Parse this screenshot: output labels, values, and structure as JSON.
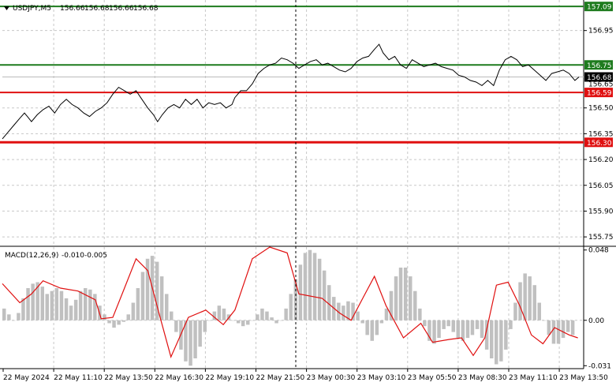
{
  "chart_data": [
    {
      "type": "line",
      "symbol_header": "USDJPY,M5",
      "ohlc": [
        "156.66",
        "156.68",
        "156.66",
        "156.68"
      ],
      "ylim": [
        155.7,
        157.1
      ],
      "y_ticks": [
        {
          "value": 156.95,
          "label": "156.95"
        },
        {
          "value": 156.5,
          "label": "156.50"
        },
        {
          "value": 156.35,
          "label": "156.35"
        },
        {
          "value": 156.2,
          "label": "156.20"
        },
        {
          "value": 156.05,
          "label": "156.05"
        },
        {
          "value": 155.9,
          "label": "155.90"
        },
        {
          "value": 155.75,
          "label": "155.75"
        }
      ],
      "levels": [
        {
          "value": 157.09,
          "label": "157.09",
          "color": "#1e7b1e"
        },
        {
          "value": 156.75,
          "label": "156.75",
          "color": "#1e7b1e"
        },
        {
          "value": 156.59,
          "label": "156.59",
          "color": "#e01010"
        },
        {
          "value": 156.3,
          "label": "156.30",
          "color": "#e01010"
        }
      ],
      "current_price": {
        "value": 156.68,
        "label": "156.68",
        "second_label": "156.65"
      },
      "x_tick_labels": [
        "22 May 2024",
        "22 May 11:10",
        "22 May 13:50",
        "22 May 16:30",
        "22 May 19:10",
        "22 May 21:50",
        "23 May 00:30",
        "23 May 03:10",
        "23 May 05:50",
        "23 May 08:30",
        "23 May 11:10",
        "23 May 13:50"
      ],
      "x_range": [
        0,
        100
      ],
      "series": [
        {
          "values": [
            [
              0.0,
              156.32
            ],
            [
              1.0,
              156.36
            ],
            [
              2.0,
              156.4
            ],
            [
              3.0,
              156.44
            ],
            [
              3.8,
              156.47
            ],
            [
              4.3,
              156.45
            ],
            [
              5.0,
              156.42
            ],
            [
              6.0,
              156.46
            ],
            [
              7.0,
              156.49
            ],
            [
              8.0,
              156.51
            ],
            [
              9.0,
              156.47
            ],
            [
              10.0,
              156.52
            ],
            [
              11.0,
              156.55
            ],
            [
              12.0,
              156.52
            ],
            [
              13.0,
              156.5
            ],
            [
              14.0,
              156.47
            ],
            [
              15.0,
              156.45
            ],
            [
              16.0,
              156.48
            ],
            [
              17.0,
              156.5
            ],
            [
              18.0,
              156.53
            ],
            [
              19.0,
              156.58
            ],
            [
              20.0,
              156.62
            ],
            [
              21.0,
              156.6
            ],
            [
              22.0,
              156.58
            ],
            [
              23.0,
              156.6
            ],
            [
              24.0,
              156.55
            ],
            [
              25.0,
              156.5
            ],
            [
              26.0,
              156.46
            ],
            [
              26.7,
              156.42
            ],
            [
              27.5,
              156.46
            ],
            [
              28.5,
              156.5
            ],
            [
              29.5,
              156.52
            ],
            [
              30.5,
              156.5
            ],
            [
              31.5,
              156.55
            ],
            [
              32.5,
              156.52
            ],
            [
              33.5,
              156.55
            ],
            [
              34.5,
              156.5
            ],
            [
              35.5,
              156.53
            ],
            [
              36.5,
              156.52
            ],
            [
              37.5,
              156.53
            ],
            [
              38.5,
              156.5
            ],
            [
              39.5,
              156.52
            ],
            [
              40.0,
              156.56
            ],
            [
              41.0,
              156.6
            ],
            [
              42.0,
              156.6
            ],
            [
              43.0,
              156.64
            ],
            [
              44.0,
              156.7
            ],
            [
              45.0,
              156.73
            ],
            [
              46.0,
              156.75
            ],
            [
              47.0,
              156.76
            ],
            [
              48.0,
              156.79
            ],
            [
              49.0,
              156.78
            ],
            [
              50.0,
              156.76
            ],
            [
              51.0,
              156.73
            ],
            [
              52.0,
              156.75
            ],
            [
              53.0,
              156.77
            ],
            [
              54.0,
              156.78
            ],
            [
              55.0,
              156.75
            ],
            [
              56.0,
              156.76
            ],
            [
              57.0,
              156.74
            ],
            [
              58.0,
              156.72
            ],
            [
              59.0,
              156.71
            ],
            [
              60.0,
              156.73
            ],
            [
              61.0,
              156.77
            ],
            [
              62.0,
              156.79
            ],
            [
              63.0,
              156.8
            ],
            [
              64.0,
              156.84
            ],
            [
              64.8,
              156.87
            ],
            [
              65.5,
              156.82
            ],
            [
              66.5,
              156.78
            ],
            [
              67.5,
              156.8
            ],
            [
              68.5,
              156.75
            ],
            [
              69.5,
              156.73
            ],
            [
              70.5,
              156.78
            ],
            [
              71.5,
              156.76
            ],
            [
              72.5,
              156.74
            ],
            [
              73.5,
              156.75
            ],
            [
              74.5,
              156.76
            ],
            [
              75.5,
              156.74
            ],
            [
              76.5,
              156.73
            ],
            [
              77.5,
              156.72
            ],
            [
              78.5,
              156.69
            ],
            [
              79.5,
              156.68
            ],
            [
              80.5,
              156.66
            ],
            [
              81.5,
              156.65
            ],
            [
              82.5,
              156.63
            ],
            [
              83.5,
              156.66
            ],
            [
              84.5,
              156.63
            ],
            [
              85.5,
              156.72
            ],
            [
              86.5,
              156.78
            ],
            [
              87.5,
              156.8
            ],
            [
              88.5,
              156.78
            ],
            [
              89.5,
              156.74
            ],
            [
              90.5,
              156.75
            ],
            [
              91.5,
              156.72
            ],
            [
              92.5,
              156.69
            ],
            [
              93.5,
              156.66
            ],
            [
              94.5,
              156.7
            ],
            [
              95.5,
              156.71
            ],
            [
              96.5,
              156.72
            ],
            [
              97.5,
              156.7
            ],
            [
              98.5,
              156.66
            ],
            [
              99.2,
              156.68
            ]
          ]
        }
      ]
    },
    {
      "type": "bar",
      "title": "MACD(12,26,9)",
      "values_text": [
        "-0.010",
        "-0.005"
      ],
      "ylim": [
        -0.033,
        0.05
      ],
      "y_ticks": [
        {
          "value": 0.048,
          "label": "0.048"
        },
        {
          "value": 0.0,
          "label": "0.00"
        },
        {
          "value": -0.031,
          "label": "-0.031"
        }
      ],
      "histogram": [
        0.008,
        0.004,
        0.0,
        0.005,
        0.015,
        0.022,
        0.025,
        0.026,
        0.023,
        0.018,
        0.02,
        0.022,
        0.02,
        0.015,
        0.01,
        0.014,
        0.02,
        0.022,
        0.021,
        0.018,
        0.01,
        0.004,
        -0.002,
        -0.005,
        -0.003,
        -0.001,
        0.004,
        0.012,
        0.022,
        0.033,
        0.042,
        0.044,
        0.04,
        0.03,
        0.018,
        0.006,
        -0.008,
        -0.02,
        -0.028,
        -0.031,
        -0.026,
        -0.018,
        -0.008,
        0.0,
        0.006,
        0.01,
        0.008,
        0.004,
        0.0,
        -0.002,
        -0.004,
        -0.003,
        0.0,
        0.004,
        0.008,
        0.006,
        0.002,
        -0.002,
        0.0,
        0.008,
        0.018,
        0.028,
        0.038,
        0.046,
        0.048,
        0.046,
        0.042,
        0.034,
        0.024,
        0.016,
        0.012,
        0.01,
        0.013,
        0.012,
        0.006,
        -0.002,
        -0.01,
        -0.014,
        -0.01,
        -0.002,
        0.008,
        0.02,
        0.03,
        0.036,
        0.036,
        0.03,
        0.02,
        0.008,
        -0.004,
        -0.014,
        -0.016,
        -0.012,
        -0.006,
        -0.004,
        -0.008,
        -0.012,
        -0.014,
        -0.012,
        -0.01,
        -0.006,
        -0.012,
        -0.02,
        -0.026,
        -0.03,
        -0.028,
        -0.02,
        -0.006,
        0.012,
        0.026,
        0.032,
        0.03,
        0.024,
        0.012,
        0.0,
        -0.01,
        -0.016,
        -0.016,
        -0.012,
        -0.008,
        -0.01
      ],
      "signal": [
        [
          0.0,
          0.025
        ],
        [
          3.0,
          0.012
        ],
        [
          5.0,
          0.018
        ],
        [
          7.0,
          0.027
        ],
        [
          10.0,
          0.022
        ],
        [
          13.0,
          0.02
        ],
        [
          16.0,
          0.014
        ],
        [
          17.0,
          0.001
        ],
        [
          19.0,
          0.002
        ],
        [
          21.0,
          0.022
        ],
        [
          23.0,
          0.042
        ],
        [
          25.0,
          0.034
        ],
        [
          27.0,
          0.004
        ],
        [
          29.0,
          -0.025
        ],
        [
          32.0,
          0.002
        ],
        [
          35.0,
          0.007
        ],
        [
          38.0,
          -0.003
        ],
        [
          40.0,
          0.007
        ],
        [
          43.0,
          0.042
        ],
        [
          46.0,
          0.05
        ],
        [
          49.0,
          0.046
        ],
        [
          51.0,
          0.018
        ],
        [
          55.0,
          0.015
        ],
        [
          58.0,
          0.005
        ],
        [
          60.0,
          0.0
        ],
        [
          62.0,
          0.015
        ],
        [
          64.0,
          0.03
        ],
        [
          66.0,
          0.01
        ],
        [
          69.0,
          -0.012
        ],
        [
          72.0,
          -0.002
        ],
        [
          74.0,
          -0.015
        ],
        [
          77.0,
          -0.013
        ],
        [
          79.0,
          -0.012
        ],
        [
          81.0,
          -0.024
        ],
        [
          83.0,
          -0.012
        ],
        [
          85.0,
          0.024
        ],
        [
          87.0,
          0.026
        ],
        [
          89.0,
          0.01
        ],
        [
          91.0,
          -0.01
        ],
        [
          93.0,
          -0.016
        ],
        [
          95.0,
          -0.005
        ],
        [
          97.5,
          -0.01
        ],
        [
          99.0,
          -0.012
        ]
      ]
    }
  ]
}
